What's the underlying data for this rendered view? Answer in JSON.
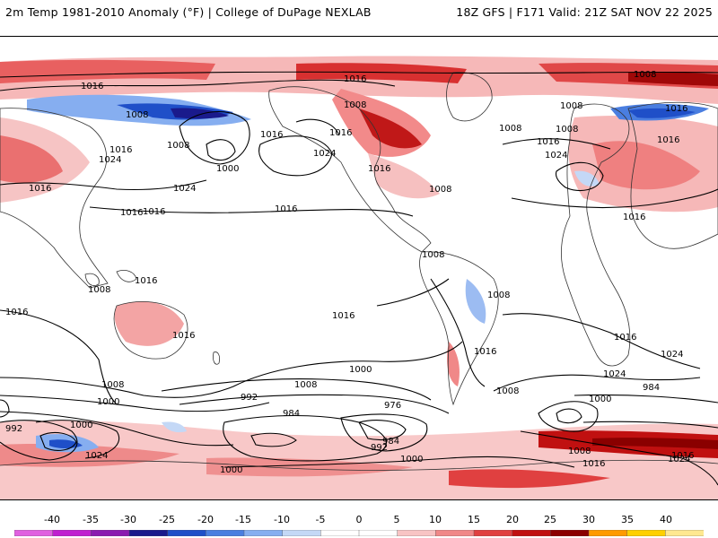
{
  "header": {
    "title": "2m Temp 1981-2010 Anomaly (°F) | College of DuPage NEXLAB",
    "run_info": "18Z GFS | F171 Valid: 21Z SAT NOV 22 2025"
  },
  "colorbar": {
    "labels": [
      "-40",
      "-35",
      "-30",
      "-25",
      "-20",
      "-15",
      "-10",
      "-5",
      "0",
      "5",
      "10",
      "15",
      "20",
      "25",
      "30",
      "35",
      "40"
    ],
    "colors": [
      "#e060e0",
      "#c020d0",
      "#8a1bb0",
      "#1a1a8c",
      "#1f4fc8",
      "#4a7ee0",
      "#86aef0",
      "#c4d8f6",
      "#ffffff",
      "#ffffff",
      "#f8c4c4",
      "#f08888",
      "#e04040",
      "#c01010",
      "#8a0000",
      "#ff9a00",
      "#ffd000",
      "#ffe890"
    ]
  },
  "isobars": {
    "labels": [
      "1016",
      "1008",
      "1016",
      "1016",
      "1008",
      "1016",
      "1008",
      "1024",
      "1016",
      "1000",
      "1024",
      "1016",
      "1016",
      "1024",
      "1008",
      "1016",
      "1008",
      "1016",
      "1008",
      "1016",
      "1024",
      "1016",
      "1008",
      "1016",
      "1008",
      "1008",
      "1008",
      "1016",
      "1016",
      "1016",
      "1016",
      "1008",
      "1016",
      "1016",
      "1016",
      "1000",
      "1008",
      "1024",
      "992",
      "1000",
      "984",
      "992",
      "1008",
      "1000",
      "976",
      "984",
      "992",
      "1000",
      "1000",
      "1024",
      "1008",
      "1016",
      "1024",
      "1000",
      "1008",
      "1016",
      "984",
      "1024",
      "1016"
    ]
  }
}
